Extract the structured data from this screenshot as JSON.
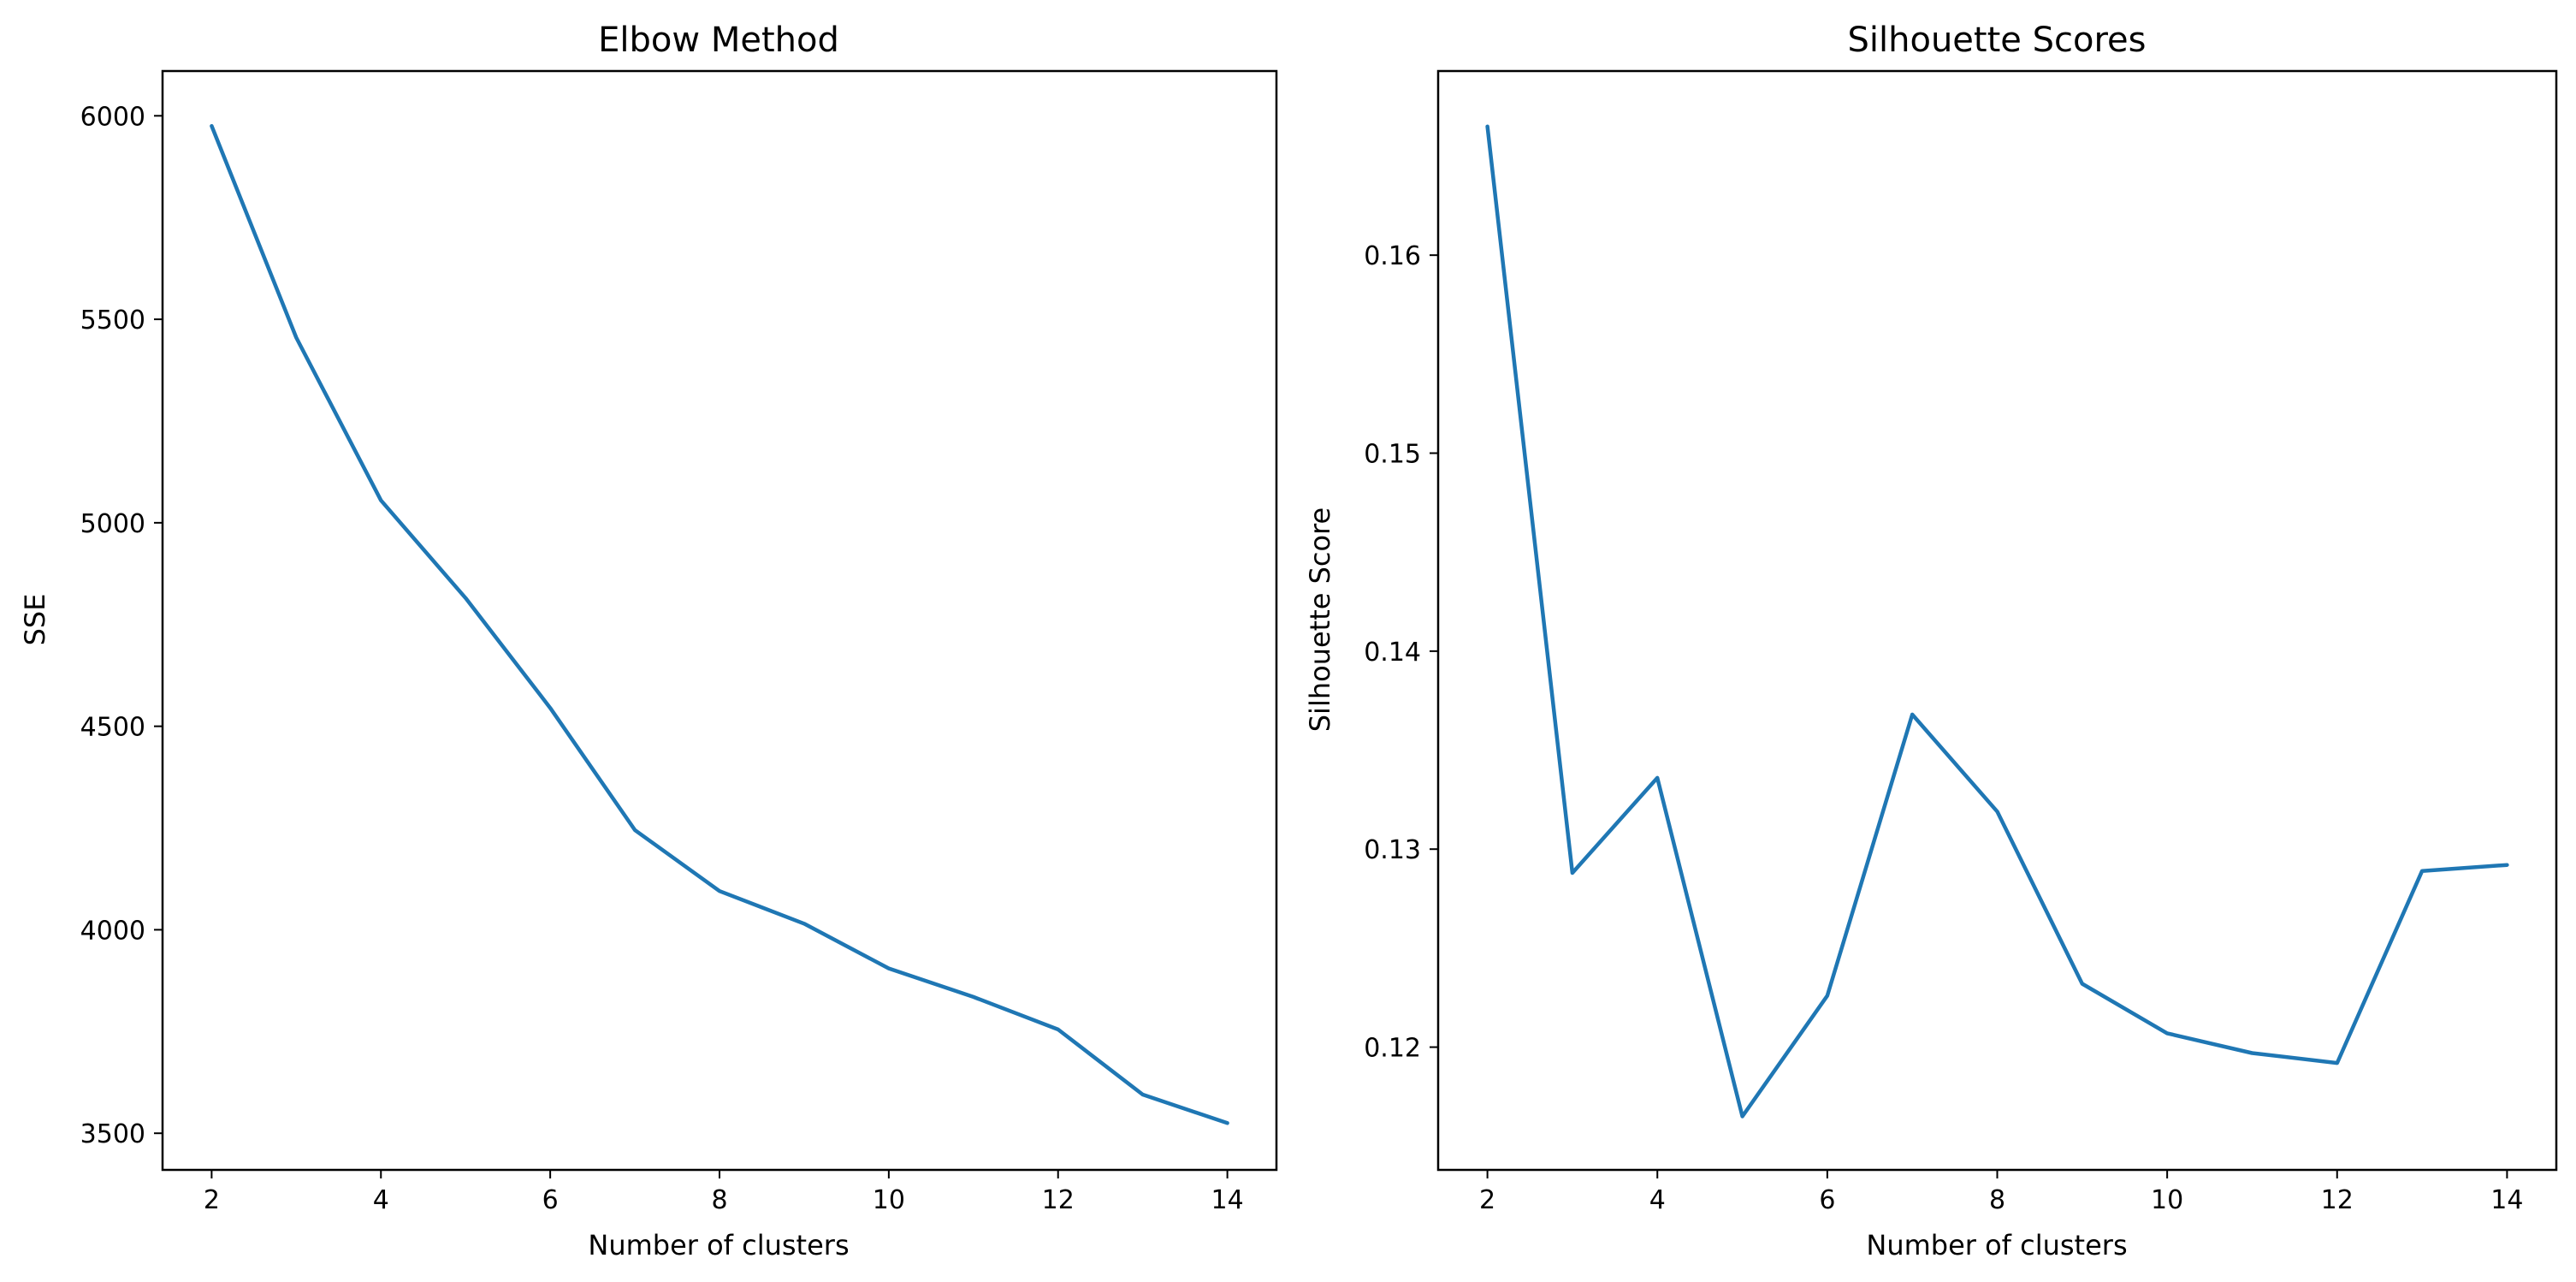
{
  "chart_data": [
    {
      "type": "line",
      "title": "Elbow Method",
      "xlabel": "Number of clusters",
      "ylabel": "SSE",
      "xlim": [
        1.42,
        14.58
      ],
      "ylim": [
        3410,
        6110
      ],
      "xticks": [
        2,
        4,
        6,
        8,
        10,
        12,
        14
      ],
      "yticks": [
        3500,
        4000,
        4500,
        5000,
        5500,
        6000
      ],
      "grid": false,
      "series": [
        {
          "color": "#1f77b4",
          "x": [
            2,
            3,
            4,
            5,
            6,
            7,
            8,
            9,
            10,
            11,
            12,
            13,
            14
          ],
          "y": [
            5975,
            5455,
            5055,
            4815,
            4545,
            4245,
            4095,
            4015,
            3905,
            3835,
            3755,
            3595,
            3525
          ]
        }
      ]
    },
    {
      "type": "line",
      "title": "Silhouette Scores",
      "xlabel": "Number of clusters",
      "ylabel": "Silhouette Score",
      "xlim": [
        1.42,
        14.58
      ],
      "ylim": [
        0.1138,
        0.1693
      ],
      "xticks": [
        2,
        4,
        6,
        8,
        10,
        12,
        14
      ],
      "yticks": [
        0.12,
        0.13,
        0.14,
        0.15,
        0.16
      ],
      "grid": false,
      "series": [
        {
          "color": "#1f77b4",
          "x": [
            2,
            3,
            4,
            5,
            6,
            7,
            8,
            9,
            10,
            11,
            12,
            13,
            14
          ],
          "y": [
            0.1665,
            0.1288,
            0.1336,
            0.1165,
            0.1226,
            0.1368,
            0.1319,
            0.1232,
            0.1207,
            0.1197,
            0.1192,
            0.1289,
            0.1292
          ]
        }
      ]
    }
  ]
}
